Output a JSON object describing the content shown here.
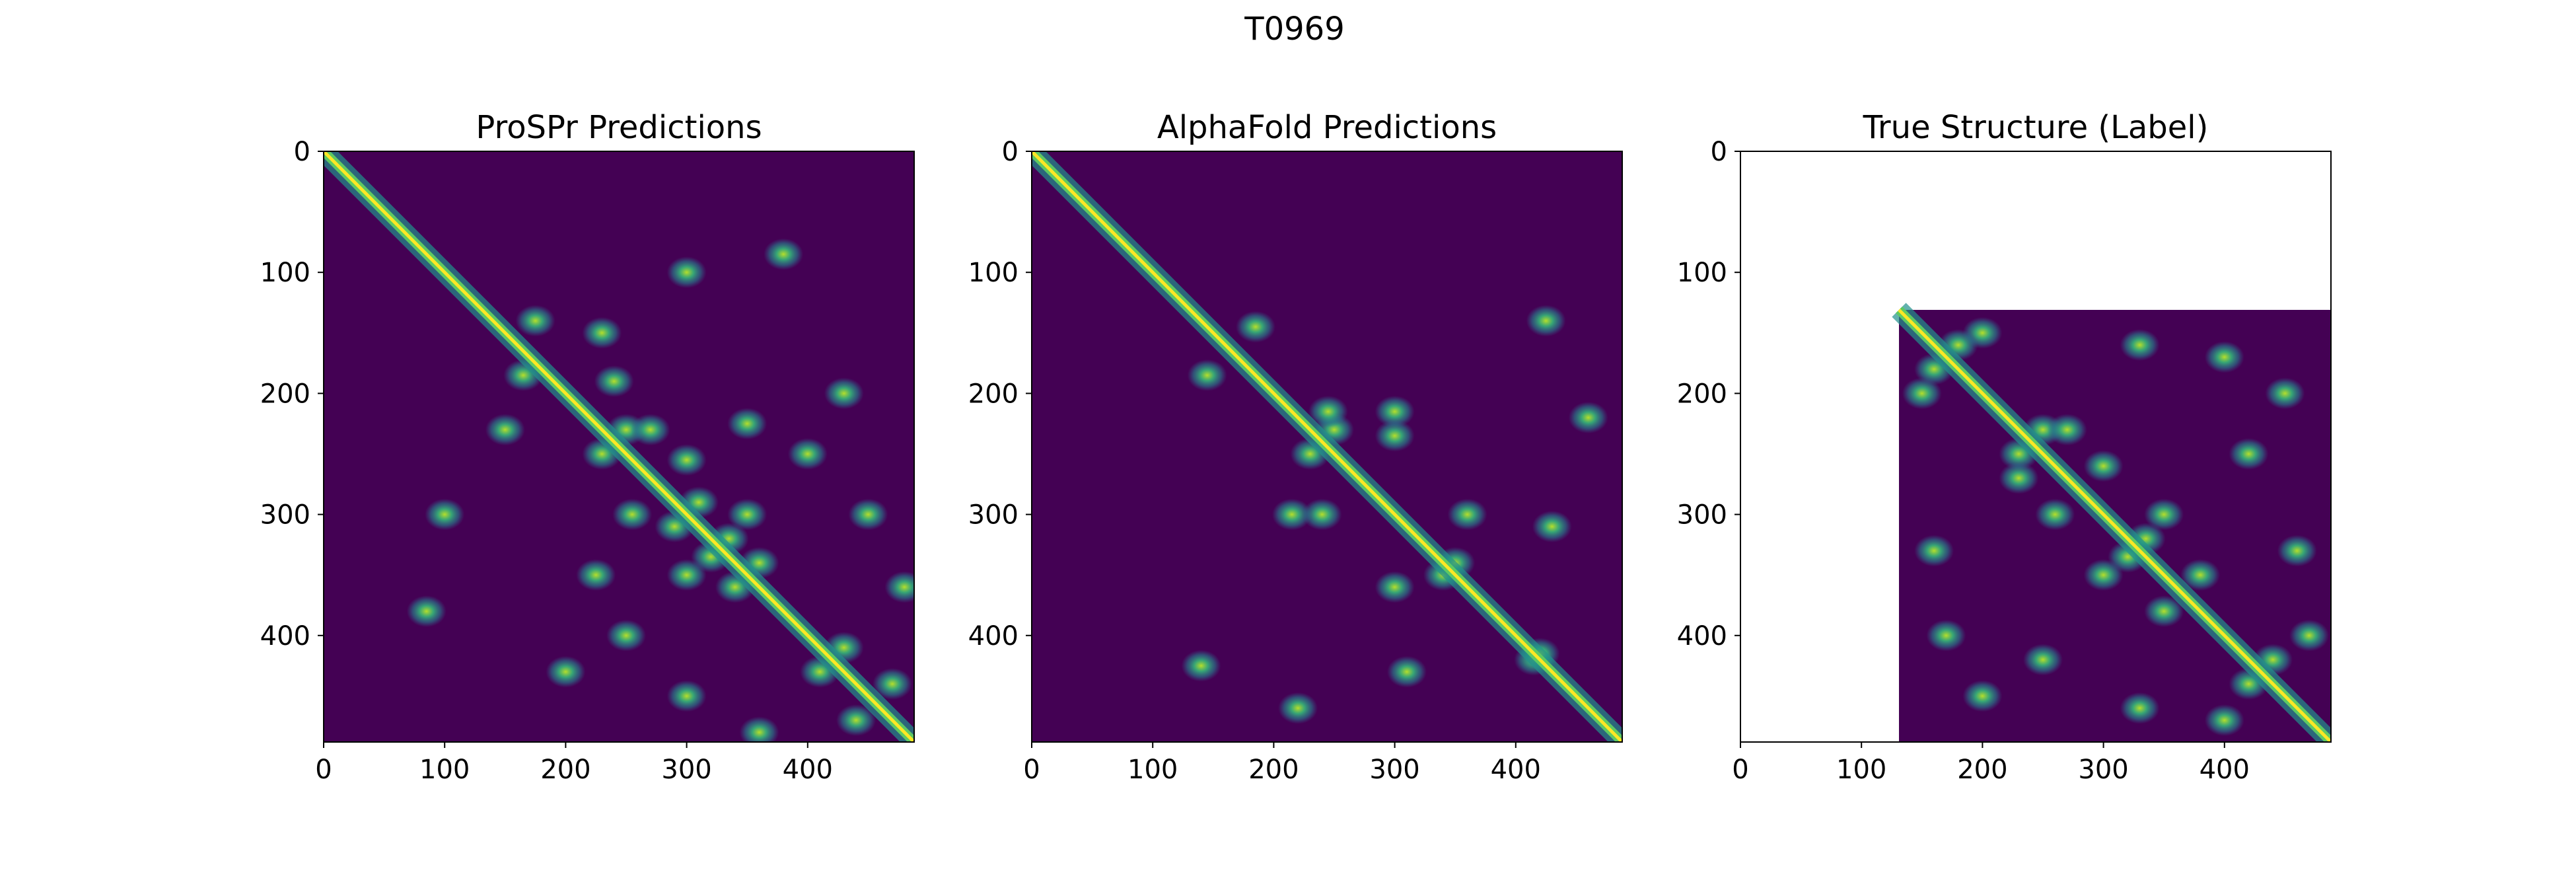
{
  "figure": {
    "title": "T0969",
    "background": "#ffffff",
    "colormap": "viridis"
  },
  "chart_data": [
    {
      "type": "heatmap",
      "title": "ProSPr Predictions",
      "xlabel": "",
      "ylabel": "",
      "xlim": [
        0,
        488
      ],
      "ylim": [
        488,
        0
      ],
      "y_inverted": true,
      "xticks": [
        "0",
        "100",
        "200",
        "300",
        "400"
      ],
      "yticks": [
        "0",
        "100",
        "200",
        "300",
        "400"
      ],
      "data_extent": [
        0,
        488
      ],
      "diagonal_contacts": true,
      "contact_blobs": [
        [
          165,
          185
        ],
        [
          175,
          140
        ],
        [
          230,
          250
        ],
        [
          250,
          230
        ],
        [
          270,
          230
        ],
        [
          240,
          190
        ],
        [
          290,
          310
        ],
        [
          310,
          290
        ],
        [
          300,
          255
        ],
        [
          255,
          300
        ],
        [
          320,
          335
        ],
        [
          335,
          320
        ],
        [
          350,
          300
        ],
        [
          300,
          350
        ],
        [
          360,
          340
        ],
        [
          340,
          360
        ],
        [
          410,
          430
        ],
        [
          430,
          410
        ],
        [
          440,
          470
        ],
        [
          470,
          440
        ],
        [
          225,
          350
        ],
        [
          350,
          225
        ],
        [
          300,
          450
        ],
        [
          450,
          300
        ],
        [
          360,
          480
        ],
        [
          480,
          360
        ],
        [
          200,
          430
        ],
        [
          430,
          200
        ],
        [
          250,
          400
        ],
        [
          400,
          250
        ],
        [
          85,
          380
        ],
        [
          380,
          85
        ],
        [
          100,
          300
        ],
        [
          300,
          100
        ],
        [
          150,
          230
        ],
        [
          230,
          150
        ]
      ]
    },
    {
      "type": "heatmap",
      "title": "AlphaFold Predictions",
      "xlabel": "",
      "ylabel": "",
      "xlim": [
        0,
        488
      ],
      "ylim": [
        488,
        0
      ],
      "y_inverted": true,
      "xticks": [
        "0",
        "100",
        "200",
        "300",
        "400"
      ],
      "yticks": [
        "0",
        "100",
        "200",
        "300",
        "400"
      ],
      "data_extent": [
        0,
        488
      ],
      "diagonal_contacts": true,
      "contact_blobs": [
        [
          145,
          185
        ],
        [
          185,
          145
        ],
        [
          230,
          250
        ],
        [
          250,
          230
        ],
        [
          245,
          215
        ],
        [
          215,
          300
        ],
        [
          300,
          215
        ],
        [
          300,
          235
        ],
        [
          240,
          300
        ],
        [
          340,
          350
        ],
        [
          350,
          340
        ],
        [
          415,
          420
        ],
        [
          420,
          415
        ],
        [
          360,
          300
        ],
        [
          300,
          360
        ],
        [
          425,
          140
        ],
        [
          140,
          425
        ],
        [
          220,
          460
        ],
        [
          460,
          220
        ],
        [
          310,
          430
        ],
        [
          430,
          310
        ]
      ]
    },
    {
      "type": "heatmap",
      "title": "True Structure (Label)",
      "xlabel": "",
      "ylabel": "",
      "xlim": [
        0,
        488
      ],
      "ylim": [
        488,
        0
      ],
      "y_inverted": true,
      "xticks": [
        "0",
        "100",
        "200",
        "300",
        "400"
      ],
      "yticks": [
        "0",
        "100",
        "200",
        "300",
        "400"
      ],
      "data_extent": [
        131,
        488
      ],
      "diagonal_contacts": true,
      "contact_blobs": [
        [
          150,
          200
        ],
        [
          200,
          150
        ],
        [
          230,
          250
        ],
        [
          250,
          230
        ],
        [
          270,
          230
        ],
        [
          230,
          270
        ],
        [
          300,
          260
        ],
        [
          260,
          300
        ],
        [
          320,
          335
        ],
        [
          335,
          320
        ],
        [
          350,
          300
        ],
        [
          300,
          350
        ],
        [
          380,
          350
        ],
        [
          350,
          380
        ],
        [
          420,
          440
        ],
        [
          440,
          420
        ],
        [
          470,
          400
        ],
        [
          400,
          470
        ],
        [
          170,
          400
        ],
        [
          400,
          170
        ],
        [
          450,
          200
        ],
        [
          200,
          450
        ],
        [
          330,
          460
        ],
        [
          460,
          330
        ],
        [
          160,
          330
        ],
        [
          330,
          160
        ],
        [
          250,
          420
        ],
        [
          420,
          250
        ],
        [
          180,
          160
        ],
        [
          160,
          180
        ]
      ]
    }
  ]
}
